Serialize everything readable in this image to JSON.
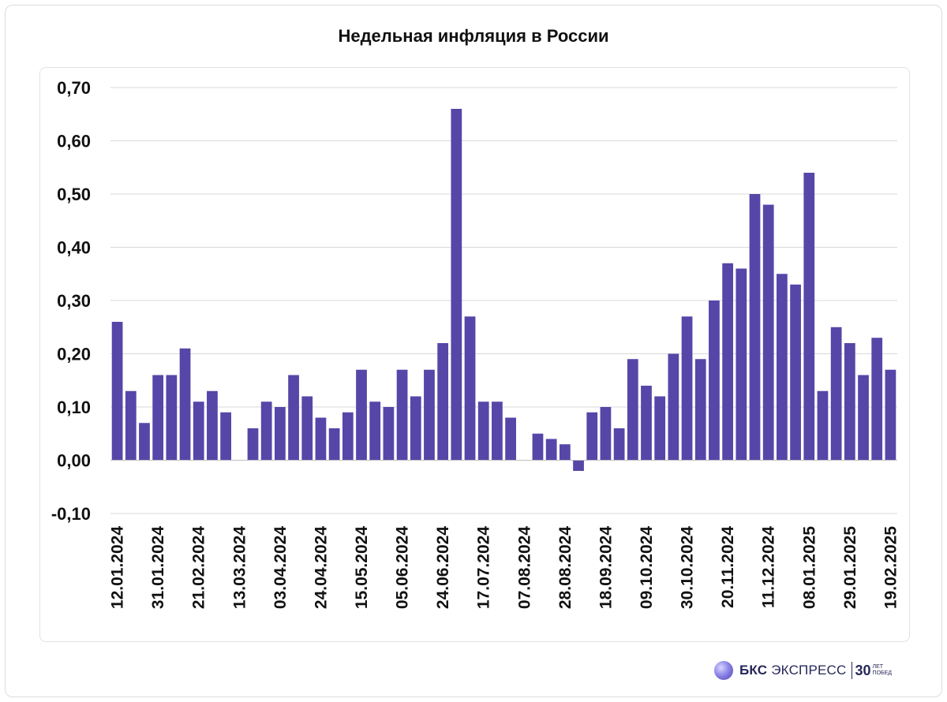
{
  "chart_data": {
    "type": "bar",
    "title": "Недельная инфляция в России",
    "xlabel": "",
    "ylabel": "",
    "ylim": [
      -0.1,
      0.7
    ],
    "ytick_values": [
      -0.1,
      0.0,
      0.1,
      0.2,
      0.3,
      0.4,
      0.5,
      0.6,
      0.7
    ],
    "ytick_labels": [
      "-0,10",
      "0,00",
      "0,10",
      "0,20",
      "0,30",
      "0,40",
      "0,50",
      "0,60",
      "0,70"
    ],
    "grid": true,
    "legend": "none",
    "bar_color": "#5646A8",
    "x_tick_labels": [
      "12.01.2024",
      "31.01.2024",
      "21.02.2024",
      "13.03.2024",
      "03.04.2024",
      "24.04.2024",
      "15.05.2024",
      "05.06.2024",
      "24.06.2024",
      "17.07.2024",
      "07.08.2024",
      "28.08.2024",
      "18.09.2024",
      "09.10.2024",
      "30.10.2024",
      "20.11.2024",
      "11.12.2024",
      "08.01.2025",
      "29.01.2025",
      "19.02.2025"
    ],
    "values": [
      0.26,
      0.13,
      0.07,
      0.16,
      0.16,
      0.21,
      0.11,
      0.13,
      0.09,
      0.0,
      0.06,
      0.11,
      0.1,
      0.16,
      0.12,
      0.08,
      0.06,
      0.09,
      0.17,
      0.11,
      0.1,
      0.17,
      0.12,
      0.17,
      0.22,
      0.66,
      0.27,
      0.11,
      0.11,
      0.08,
      0.0,
      0.05,
      0.04,
      0.03,
      -0.02,
      0.09,
      0.1,
      0.06,
      0.19,
      0.14,
      0.12,
      0.2,
      0.27,
      0.19,
      0.3,
      0.37,
      0.36,
      0.5,
      0.48,
      0.35,
      0.33,
      0.54,
      0.13,
      0.25,
      0.22,
      0.16,
      0.23,
      0.17
    ]
  },
  "brand": {
    "name_bold": "БКС",
    "name_rest": "ЭКСПРЕСС",
    "anniv_number": "30",
    "anniv_line1": "ЛЕТ",
    "anniv_line2": "ПОБЕД",
    "logo_icon": "bcs-sphere-icon"
  }
}
